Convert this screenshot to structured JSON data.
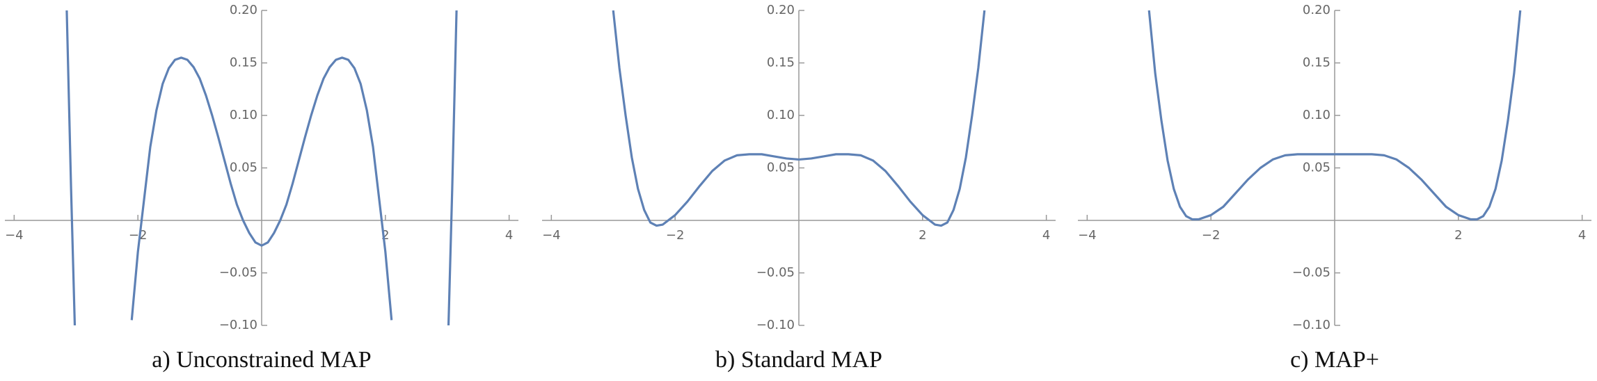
{
  "chart_data": [
    {
      "type": "line",
      "title": "a) Unconstrained MAP",
      "color": "#5e81b5",
      "xlim": [
        -4.15,
        4.15
      ],
      "ylim": [
        -0.1,
        0.2
      ],
      "xticks": [
        {
          "value": -4,
          "label": "−4"
        },
        {
          "value": -2,
          "label": "−2"
        },
        2,
        4
      ],
      "yticks": [
        {
          "value": 0.2,
          "label": "0.20"
        },
        0.15,
        {
          "value": 0.1,
          "label": "0.10"
        },
        0.05,
        {
          "value": -0.05,
          "label": "−0.05"
        },
        {
          "value": -0.1,
          "label": "−0.10"
        }
      ],
      "x": [
        -3.15,
        -3.08,
        -3.02,
        -2.5,
        -2.1,
        -2.0,
        -1.9,
        -1.8,
        -1.7,
        -1.6,
        -1.5,
        -1.4,
        -1.3,
        -1.2,
        -1.1,
        -1.0,
        -0.9,
        -0.8,
        -0.7,
        -0.6,
        -0.5,
        -0.4,
        -0.3,
        -0.2,
        -0.1,
        0,
        0.1,
        0.2,
        0.3,
        0.4,
        0.5,
        0.6,
        0.7,
        0.8,
        0.9,
        1.0,
        1.1,
        1.2,
        1.3,
        1.4,
        1.5,
        1.6,
        1.7,
        1.8,
        1.9,
        2.0,
        2.1,
        2.5,
        3.02,
        3.08,
        3.15
      ],
      "values": [
        0.2,
        0.03,
        -0.1,
        null,
        -0.095,
        -0.03,
        0.02,
        0.07,
        0.105,
        0.13,
        0.145,
        0.153,
        0.155,
        0.153,
        0.146,
        0.135,
        0.119,
        0.1,
        0.079,
        0.057,
        0.035,
        0.015,
        0.0,
        -0.012,
        -0.021,
        -0.024,
        -0.021,
        -0.012,
        0.0,
        0.015,
        0.035,
        0.057,
        0.079,
        0.1,
        0.119,
        0.135,
        0.146,
        0.153,
        0.155,
        0.153,
        0.145,
        0.13,
        0.105,
        0.07,
        0.02,
        -0.03,
        -0.095,
        null,
        -0.1,
        0.03,
        0.2
      ]
    },
    {
      "type": "line",
      "title": "b) Standard MAP",
      "color": "#5e81b5",
      "xlim": [
        -4.15,
        4.15
      ],
      "ylim": [
        -0.1,
        0.2
      ],
      "xticks": [
        {
          "value": -4,
          "label": "−4"
        },
        {
          "value": -2,
          "label": "−2"
        },
        2,
        4
      ],
      "yticks": [
        {
          "value": 0.2,
          "label": "0.20"
        },
        0.15,
        {
          "value": 0.1,
          "label": "0.10"
        },
        0.05,
        {
          "value": -0.05,
          "label": "−0.05"
        },
        {
          "value": -0.1,
          "label": "−0.10"
        }
      ],
      "x": [
        -3.0,
        -2.9,
        -2.8,
        -2.7,
        -2.6,
        -2.5,
        -2.4,
        -2.3,
        -2.2,
        -2.0,
        -1.8,
        -1.6,
        -1.4,
        -1.2,
        -1.0,
        -0.8,
        -0.6,
        -0.4,
        -0.2,
        0,
        0.2,
        0.4,
        0.6,
        0.8,
        1.0,
        1.2,
        1.4,
        1.6,
        1.8,
        2.0,
        2.2,
        2.3,
        2.4,
        2.5,
        2.6,
        2.7,
        2.8,
        2.9,
        3.0
      ],
      "values": [
        0.2,
        0.145,
        0.1,
        0.06,
        0.03,
        0.01,
        -0.002,
        -0.005,
        -0.004,
        0.005,
        0.018,
        0.033,
        0.047,
        0.057,
        0.062,
        0.063,
        0.063,
        0.061,
        0.059,
        0.058,
        0.059,
        0.061,
        0.063,
        0.063,
        0.062,
        0.057,
        0.047,
        0.033,
        0.018,
        0.005,
        -0.004,
        -0.005,
        -0.002,
        0.01,
        0.03,
        0.06,
        0.1,
        0.145,
        0.2
      ]
    },
    {
      "type": "line",
      "title": "c) MAP+",
      "color": "#5e81b5",
      "xlim": [
        -4.15,
        4.15
      ],
      "ylim": [
        -0.1,
        0.2
      ],
      "xticks": [
        {
          "value": -4,
          "label": "−4"
        },
        {
          "value": -2,
          "label": "−2"
        },
        2,
        4
      ],
      "yticks": [
        {
          "value": 0.2,
          "label": "0.20"
        },
        0.15,
        {
          "value": 0.1,
          "label": "0.10"
        },
        0.05,
        {
          "value": -0.05,
          "label": "−0.05"
        },
        {
          "value": -0.1,
          "label": "−0.10"
        }
      ],
      "x": [
        -3.0,
        -2.9,
        -2.8,
        -2.7,
        -2.6,
        -2.5,
        -2.4,
        -2.3,
        -2.2,
        -2.0,
        -1.8,
        -1.6,
        -1.4,
        -1.2,
        -1.0,
        -0.8,
        -0.6,
        -0.4,
        -0.2,
        0,
        0.2,
        0.4,
        0.6,
        0.8,
        1.0,
        1.2,
        1.4,
        1.6,
        1.8,
        2.0,
        2.2,
        2.3,
        2.4,
        2.5,
        2.6,
        2.7,
        2.8,
        2.9,
        3.0
      ],
      "values": [
        0.2,
        0.14,
        0.095,
        0.057,
        0.03,
        0.013,
        0.004,
        0.001,
        0.001,
        0.005,
        0.013,
        0.026,
        0.039,
        0.05,
        0.058,
        0.062,
        0.063,
        0.063,
        0.063,
        0.063,
        0.063,
        0.063,
        0.063,
        0.062,
        0.058,
        0.05,
        0.039,
        0.026,
        0.013,
        0.005,
        0.001,
        0.001,
        0.004,
        0.013,
        0.03,
        0.057,
        0.095,
        0.14,
        0.2
      ]
    }
  ]
}
